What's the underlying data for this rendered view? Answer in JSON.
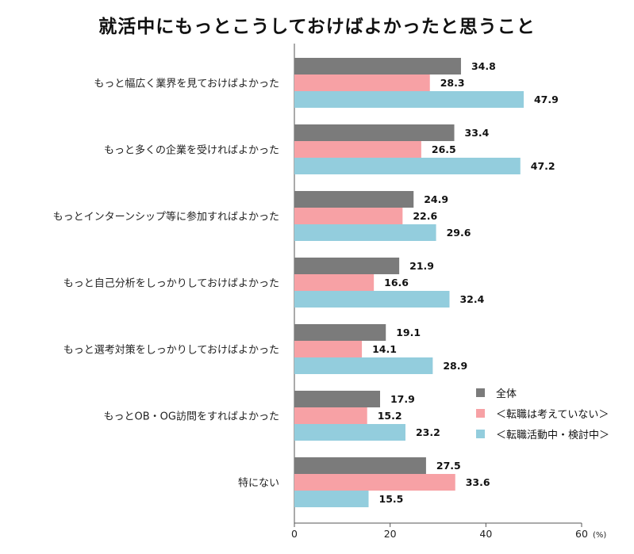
{
  "chart_data": {
    "type": "bar",
    "orientation": "horizontal",
    "title": "就活中にもっとこうしておけばよかったと思うこと",
    "categories": [
      "もっと幅広く業界を見ておけばよかった",
      "もっと多くの企業を受ければよかった",
      "もっとインターンシップ等に参加すればよかった",
      "もっと自己分析をしっかりしておけばよかった",
      "もっと選考対策をしっかりしておけばよかった",
      "もっとOB・OG訪問をすればよかった",
      "特にない"
    ],
    "series": [
      {
        "name": "全体",
        "color": "#7b7b7b",
        "values": [
          34.8,
          33.4,
          24.9,
          21.9,
          19.1,
          17.9,
          27.5
        ]
      },
      {
        "name": "＜転職は考えていない＞",
        "color": "#f7a1a5",
        "values": [
          28.3,
          26.5,
          22.6,
          16.6,
          14.1,
          15.2,
          33.6
        ]
      },
      {
        "name": "＜転職活動中・検討中＞",
        "color": "#93cddd",
        "values": [
          47.9,
          47.2,
          29.6,
          32.4,
          28.9,
          23.2,
          15.5
        ]
      }
    ],
    "value_labels": {
      "全体": [
        "34.8",
        "33.4",
        "24.9",
        "21.9",
        "19.1",
        "17.9",
        "27.5"
      ],
      "＜転職は考えていない＞": [
        "28.3",
        "26.5",
        "22.6",
        "16.6",
        "14.1",
        "15.2",
        "33.6"
      ],
      "＜転職活動中・検討中＞": [
        "47.9",
        "47.2",
        "29.6",
        "32.4",
        "28.9",
        "23.2",
        "15.5"
      ]
    },
    "xlim": [
      0,
      60
    ],
    "xticks": [
      "0",
      "20",
      "40",
      "60"
    ],
    "unit": "(%)",
    "legend_position": "lower-right",
    "grid": false
  }
}
